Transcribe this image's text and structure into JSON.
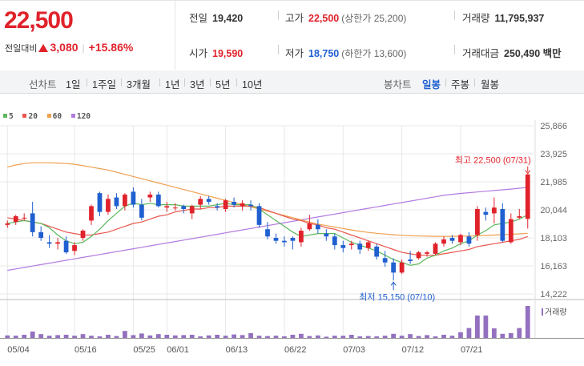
{
  "current": {
    "price": "22,500",
    "change_label": "전일대비",
    "change": "3,080",
    "pct": "+15.86%"
  },
  "info": {
    "prev": {
      "label": "전일",
      "value": "19,420"
    },
    "high": {
      "label": "고가",
      "value": "22,500",
      "limit": "(상한가 25,200)"
    },
    "volume": {
      "label": "거래량",
      "value": "11,795,937"
    },
    "open": {
      "label": "시가",
      "value": "19,590"
    },
    "low": {
      "label": "저가",
      "value": "18,750",
      "limit": "(하한가 13,600)"
    },
    "amount": {
      "label": "거래대금",
      "value": "250,490 백만"
    }
  },
  "tabs": {
    "line_head": "선차트",
    "line_items": [
      "1일",
      "1주일",
      "3개월",
      "1년",
      "3년",
      "5년",
      "10년"
    ],
    "candle_head": "봉차트",
    "candle_items": [
      "일봉",
      "주봉",
      "월봉"
    ],
    "selected": "일봉"
  },
  "colors": {
    "up": "#e0222b",
    "down": "#1f5fd0",
    "ma5": "#5cb85c",
    "ma20": "#e8574f",
    "ma60": "#f0a050",
    "ma120": "#b27be0",
    "volume": "#9370c0",
    "grid": "#e8e8e8"
  },
  "chart_data": {
    "type": "candlestick",
    "legend": [
      {
        "name": "5",
        "color": "#5cb85c"
      },
      {
        "name": "20",
        "color": "#e8574f"
      },
      {
        "name": "60",
        "color": "#f0a050"
      },
      {
        "name": "120",
        "color": "#b27be0"
      }
    ],
    "y_ticks": [
      25866,
      23925,
      21985,
      20044,
      18103,
      16163,
      14222
    ],
    "y_tick_labels": [
      "25,866",
      "23,925",
      "21,985",
      "20,044",
      "18,103",
      "16,163",
      "14,222"
    ],
    "ylim": [
      14222,
      25866
    ],
    "x_tick_labels": [
      {
        "label": "05/04",
        "index": 0
      },
      {
        "label": "05/16",
        "index": 8
      },
      {
        "label": "05/25",
        "index": 15
      },
      {
        "label": "06/01",
        "index": 19
      },
      {
        "label": "06/13",
        "index": 26
      },
      {
        "label": "06/22",
        "index": 33
      },
      {
        "label": "07/03",
        "index": 40
      },
      {
        "label": "07/12",
        "index": 47
      },
      {
        "label": "07/21",
        "index": 54
      }
    ],
    "volume_label": "거래량",
    "annotations": [
      {
        "text": "최고 22,500 (07/31)",
        "index": 62,
        "value": 22500,
        "kind": "high"
      },
      {
        "text": "최저 15,150 (07/10)",
        "index": 46,
        "value": 15150,
        "kind": "low"
      }
    ],
    "candles": [
      [
        19000,
        19300,
        18800,
        19100
      ],
      [
        19200,
        19700,
        19000,
        19600
      ],
      [
        19500,
        19800,
        19300,
        19500
      ],
      [
        19800,
        20600,
        18200,
        18500
      ],
      [
        18500,
        18900,
        17900,
        18100
      ],
      [
        17800,
        18300,
        17400,
        17700
      ],
      [
        17700,
        18100,
        17300,
        17800
      ],
      [
        17900,
        18200,
        17000,
        17100
      ],
      [
        17200,
        17800,
        16900,
        17600
      ],
      [
        18100,
        18700,
        17900,
        18600
      ],
      [
        19300,
        20400,
        19000,
        20300
      ],
      [
        21200,
        21300,
        19600,
        19900
      ],
      [
        19900,
        21100,
        19700,
        20800
      ],
      [
        20900,
        21200,
        20100,
        20300
      ],
      [
        20300,
        21200,
        20000,
        21100
      ],
      [
        21300,
        21600,
        20200,
        20400
      ],
      [
        20400,
        20800,
        19300,
        19500
      ],
      [
        20900,
        21300,
        20600,
        21100
      ],
      [
        21100,
        21300,
        20200,
        20300
      ],
      [
        20200,
        20600,
        19900,
        20300
      ],
      [
        20200,
        20500,
        20000,
        20200
      ],
      [
        20300,
        20400,
        19800,
        20100
      ],
      [
        19800,
        20400,
        19400,
        20300
      ],
      [
        20400,
        21000,
        20100,
        20800
      ],
      [
        20800,
        21000,
        20400,
        20600
      ],
      [
        20300,
        20500,
        20000,
        20200
      ],
      [
        20100,
        20800,
        19900,
        20700
      ],
      [
        20600,
        20900,
        20200,
        20400
      ],
      [
        20300,
        20700,
        20000,
        20500
      ],
      [
        20400,
        20700,
        20000,
        20300
      ],
      [
        20300,
        20500,
        18800,
        19000
      ],
      [
        18700,
        19200,
        18000,
        18200
      ],
      [
        18100,
        18400,
        17700,
        17900
      ],
      [
        17900,
        18200,
        17500,
        17800
      ],
      [
        18100,
        18200,
        17300,
        17900
      ],
      [
        17800,
        18800,
        17500,
        18600
      ],
      [
        18700,
        19700,
        18600,
        19100
      ],
      [
        19000,
        19400,
        18400,
        18700
      ],
      [
        18400,
        18700,
        17900,
        18200
      ],
      [
        18200,
        18400,
        17300,
        17600
      ],
      [
        17600,
        17900,
        17100,
        17400
      ],
      [
        17600,
        17900,
        17300,
        17700
      ],
      [
        17700,
        17900,
        17000,
        17300
      ],
      [
        17400,
        17900,
        17200,
        17800
      ],
      [
        17500,
        17700,
        16600,
        16800
      ],
      [
        16700,
        17200,
        16100,
        16400
      ],
      [
        16400,
        16700,
        15150,
        15700
      ],
      [
        15700,
        16600,
        15600,
        16400
      ],
      [
        16600,
        17200,
        16300,
        16500
      ],
      [
        16700,
        17200,
        16600,
        17100
      ],
      [
        17000,
        17200,
        16800,
        17100
      ],
      [
        17000,
        17800,
        16900,
        17700
      ],
      [
        17700,
        18200,
        17500,
        18000
      ],
      [
        18100,
        18300,
        17700,
        17900
      ],
      [
        17800,
        18400,
        17600,
        18300
      ],
      [
        18200,
        18500,
        17500,
        17700
      ],
      [
        18300,
        20300,
        17900,
        20100
      ],
      [
        19900,
        20200,
        19300,
        19700
      ],
      [
        19800,
        20900,
        19100,
        20200
      ],
      [
        20100,
        20500,
        17800,
        17900
      ],
      [
        17800,
        19800,
        17700,
        19400
      ],
      [
        19500,
        20100,
        19400,
        19600
      ],
      [
        19420,
        22500,
        18750,
        22500
      ]
    ],
    "ma5": [
      19100,
      19200,
      19300,
      19200,
      19100,
      18800,
      18300,
      17900,
      17700,
      17800,
      18200,
      18700,
      19300,
      19800,
      20300,
      20500,
      20400,
      20500,
      20400,
      20400,
      20400,
      20300,
      20300,
      20300,
      20300,
      20400,
      20500,
      20400,
      20400,
      20400,
      20100,
      19700,
      19300,
      18900,
      18500,
      18200,
      18300,
      18400,
      18400,
      18400,
      18100,
      17800,
      17600,
      17400,
      17200,
      16900,
      16600,
      16400,
      16200,
      16300,
      16700,
      16900,
      17200,
      17400,
      17700,
      17900,
      18300,
      18600,
      19000,
      19100,
      19200,
      19400,
      19700
    ],
    "ma20": [
      19500,
      19400,
      19300,
      19200,
      19100,
      18900,
      18700,
      18500,
      18400,
      18300,
      18300,
      18400,
      18500,
      18700,
      18900,
      19100,
      19200,
      19400,
      19600,
      19700,
      19900,
      20000,
      20100,
      20100,
      20200,
      20200,
      20300,
      20300,
      20300,
      20300,
      20200,
      20000,
      19800,
      19600,
      19400,
      19300,
      19100,
      19000,
      18800,
      18700,
      18500,
      18300,
      18100,
      17900,
      17700,
      17500,
      17300,
      17100,
      17000,
      16900,
      16900,
      16900,
      17000,
      17100,
      17200,
      17300,
      17500,
      17600,
      17700,
      17800,
      17900,
      18000,
      18200
    ],
    "ma60": [
      23000,
      23150,
      23250,
      23300,
      23300,
      23300,
      23280,
      23250,
      23200,
      23100,
      23000,
      22900,
      22800,
      22650,
      22500,
      22350,
      22200,
      22050,
      21900,
      21750,
      21600,
      21450,
      21300,
      21150,
      21000,
      20850,
      20700,
      20550,
      20400,
      20250,
      20100,
      19950,
      19800,
      19650,
      19500,
      19350,
      19200,
      19050,
      18950,
      18850,
      18750,
      18650,
      18550,
      18480,
      18420,
      18370,
      18320,
      18280,
      18250,
      18230,
      18220,
      18210,
      18210,
      18210,
      18220,
      18230,
      18250,
      18270,
      18300,
      18320,
      18350,
      18380,
      18420
    ],
    "ma120": [
      15850,
      15950,
      16050,
      16150,
      16250,
      16350,
      16450,
      16550,
      16650,
      16750,
      16850,
      16950,
      17050,
      17150,
      17250,
      17350,
      17450,
      17550,
      17650,
      17750,
      17850,
      17950,
      18050,
      18150,
      18250,
      18350,
      18450,
      18550,
      18650,
      18750,
      18850,
      18950,
      19050,
      19150,
      19250,
      19350,
      19450,
      19550,
      19650,
      19750,
      19850,
      19950,
      20050,
      20150,
      20250,
      20350,
      20450,
      20550,
      20650,
      20750,
      20850,
      20950,
      21050,
      21120,
      21180,
      21230,
      21280,
      21330,
      21380,
      21430,
      21480,
      21540,
      21600
    ],
    "volume": [
      0.08,
      0.07,
      0.1,
      0.2,
      0.12,
      0.07,
      0.09,
      0.1,
      0.07,
      0.12,
      0.07,
      0.05,
      0.1,
      0.06,
      0.22,
      0.09,
      0.14,
      0.08,
      0.12,
      0.1,
      0.08,
      0.09,
      0.1,
      0.05,
      0.08,
      0.1,
      0.07,
      0.11,
      0.09,
      0.15,
      0.07,
      0.06,
      0.07,
      0.05,
      0.1,
      0.13,
      0.06,
      0.08,
      0.04,
      0.07,
      0.07,
      0.1,
      0.05,
      0.06,
      0.05,
      0.07,
      0.13,
      0.07,
      0.12,
      0.06,
      0.09,
      0.05,
      0.1,
      0.07,
      0.18,
      0.31,
      0.7,
      0.7,
      0.3,
      0.13,
      0.15,
      0.31,
      1.0
    ]
  }
}
